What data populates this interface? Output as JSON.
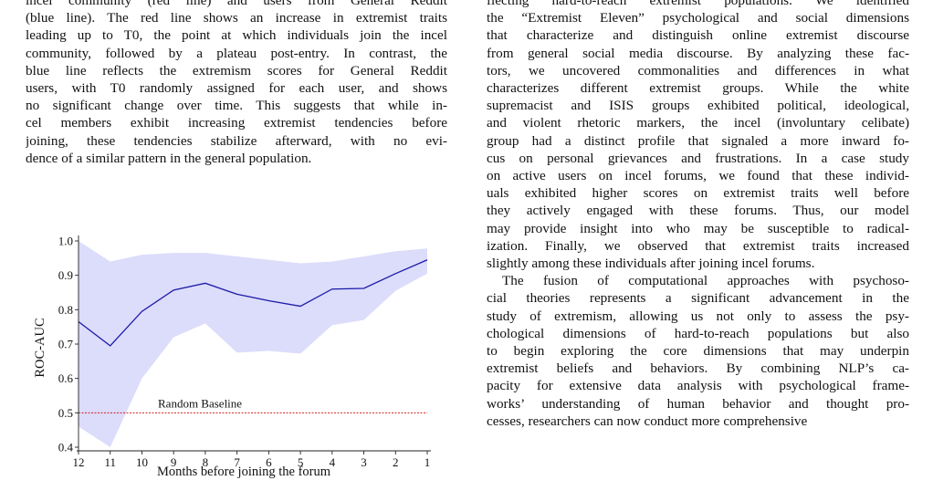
{
  "left_column": {
    "paragraph": [
      "incel community (red line) and users from General Reddit",
      "(blue line). The red line shows an increase in extremist traits",
      "leading up to T0, the point at which individuals join the incel",
      "community, followed by a plateau post-entry. In contrast, the",
      "blue line reflects the extremism scores for General Reddit",
      "users, with T0 randomly assigned for each user, and shows",
      "no significant change over time. This suggests that while in-",
      "cel members exhibit increasing extremist tendencies before",
      "joining, these tendencies stabilize afterward, with no evi-",
      "dence of a similar pattern in the general population."
    ]
  },
  "right_column": {
    "paragraph1": [
      "flecting hard-to-reach extremist populations. We identified",
      "the “Extremist Eleven” psychological and social dimensions",
      "that characterize and distinguish online extremist discourse",
      "from general social media discourse. By analyzing these fac-",
      "tors, we uncovered commonalities and differences in what",
      "characterizes different extremist groups. While the white",
      "supremacist and ISIS groups exhibited political, ideological,",
      "and violent rhetoric markers, the incel (involuntary celibate)",
      "group had a distinct profile that signaled a more inward fo-",
      "cus on personal grievances and frustrations. In a case study",
      "on active users on incel forums, we found that these individ-",
      "uals exhibited higher scores on extremist traits well before",
      "they actively engaged with these forums. Thus, our model",
      "may provide insight into who may be susceptible to radical-",
      "ization. Finally, we observed that extremist traits increased",
      "slightly among these individuals after joining incel forums."
    ],
    "paragraph2": [
      "The fusion of computational approaches with psychoso-",
      "cial theories represents a significant advancement in the",
      "study of extremism, allowing us not only to assess the psy-",
      "chological dimensions of hard-to-reach populations but also",
      "to begin exploring the core dimensions that may underpin",
      "extremist beliefs and behaviors. By combining NLP’s ca-",
      "pacity for extensive data analysis with psychological frame-",
      "works’ understanding of human behavior and thought pro-",
      "cesses, researchers can now conduct more comprehensive"
    ]
  },
  "chart_data": {
    "type": "line",
    "title": "",
    "xlabel": "Months before joining the forum",
    "ylabel": "ROC-AUC",
    "x": [
      12,
      11,
      10,
      9,
      8,
      7,
      6,
      5,
      4,
      3,
      2,
      1
    ],
    "xlim": [
      12,
      1
    ],
    "ylim": [
      0.4,
      1.0
    ],
    "yticks": [
      "0.4",
      "0.5",
      "0.6",
      "0.7",
      "0.8",
      "0.9",
      "1.0"
    ],
    "series": [
      {
        "values": [
          0.765,
          0.695,
          0.795,
          0.857,
          0.877,
          0.845,
          0.826,
          0.81,
          0.86,
          0.862,
          0.905,
          0.945
        ],
        "lower": [
          0.46,
          0.4,
          0.6,
          0.72,
          0.76,
          0.675,
          0.68,
          0.672,
          0.755,
          0.77,
          0.855,
          0.905
        ],
        "upper": [
          1.0,
          0.94,
          0.96,
          0.965,
          0.965,
          0.955,
          0.945,
          0.935,
          0.94,
          0.955,
          0.97,
          0.978
        ],
        "color": "#1a1aa8",
        "band_color": "#dcdcfb"
      }
    ],
    "baseline": {
      "label": "Random Baseline",
      "value": 0.5,
      "color": "#d42020"
    },
    "grid": false
  }
}
